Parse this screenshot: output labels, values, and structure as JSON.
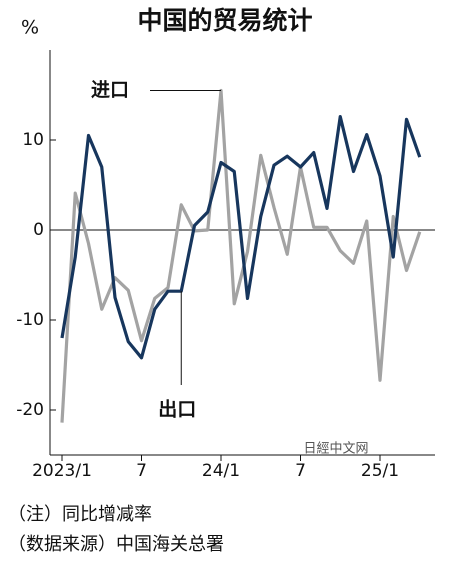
{
  "chart_data": {
    "type": "line",
    "title": "中国的贸易统计",
    "y_unit": "%",
    "categories": [
      "2023/1",
      null,
      null,
      null,
      null,
      null,
      "7",
      null,
      null,
      null,
      null,
      null,
      "24/1",
      null,
      null,
      null,
      null,
      null,
      "7",
      null,
      null,
      null,
      null,
      null,
      "25/1",
      null,
      null,
      null
    ],
    "series": [
      {
        "name": "进口",
        "color": "#a3a3a3",
        "values": [
          -21.4,
          4.1,
          -1.5,
          -8.8,
          -5.3,
          -6.7,
          -12.3,
          -7.6,
          -6.4,
          2.8,
          -0.1,
          0,
          15.5,
          -8.2,
          -2.4,
          8.3,
          2.5,
          -2.7,
          7,
          0.3,
          0.3,
          -2.3,
          -3.7,
          1,
          -16.7,
          1.5,
          -4.5,
          -0.2
        ]
      },
      {
        "name": "出口",
        "color": "#17365d",
        "values": [
          -12,
          -3,
          10.5,
          7,
          -7.5,
          -12.4,
          -14.2,
          -8.8,
          -6.8,
          -6.8,
          0.5,
          2,
          7.5,
          6.5,
          -7.6,
          1.5,
          7.2,
          8.2,
          7,
          8.6,
          2.4,
          12.6,
          6.5,
          10.6,
          6,
          -3,
          12.3,
          8.1
        ]
      }
    ],
    "ylim": [
      -25,
      20
    ],
    "yticks": [
      -20,
      -10,
      0,
      10
    ],
    "notes": [
      "（注）同比增减率",
      "（数据来源）中国海关总署"
    ],
    "watermark": "日經中文网"
  }
}
